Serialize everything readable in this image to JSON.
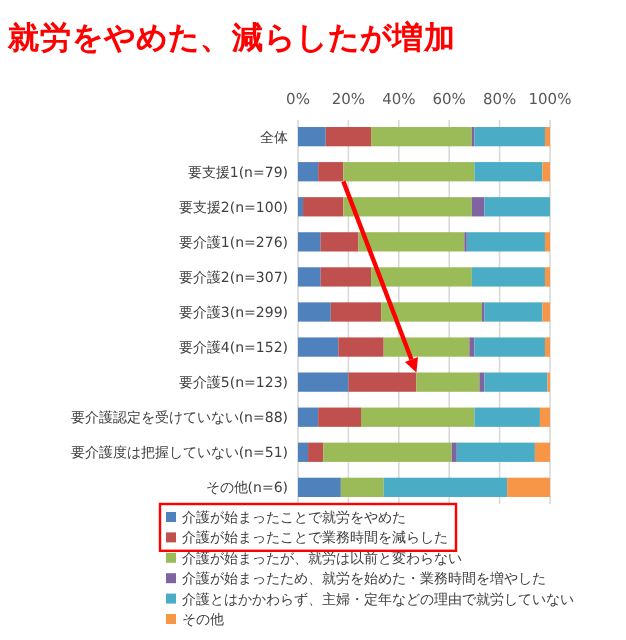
{
  "chart_data": {
    "type": "bar",
    "orientation": "horizontal",
    "stacked": true,
    "title": "就労をやめた、減らしたが増加",
    "categories": [
      "全体",
      "要支援1(n=79)",
      "要支援2(n=100)",
      "要介護1(n=276)",
      "要介護2(n=307)",
      "要介護3(n=299)",
      "要介護4(n=152)",
      "要介護5(n=123)",
      "要介護認定を受けていない(n=88)",
      "要介護度は把握していない(n=51)",
      "その他(n=6)"
    ],
    "series": [
      {
        "name": "介護が始まったことで就労をやめた",
        "color": "#4f81bd",
        "values": [
          11,
          8,
          2,
          9,
          9,
          13,
          16,
          20,
          8,
          4,
          17
        ]
      },
      {
        "name": "介護が始まったことで業務時間を減らした",
        "color": "#c0504d",
        "values": [
          18,
          10,
          16,
          15,
          20,
          20,
          18,
          27,
          17,
          6,
          0
        ]
      },
      {
        "name": "介護が始まったが、就労は以前と変わらない",
        "color": "#9bbb59",
        "values": [
          40,
          52,
          51,
          42,
          40,
          40,
          34,
          25,
          45,
          51,
          17
        ]
      },
      {
        "name": "介護が始まったため、就労を始めた・業務時間を増やした",
        "color": "#8064a2",
        "values": [
          1,
          0,
          5,
          1,
          0,
          1,
          2,
          2,
          0,
          2,
          0
        ]
      },
      {
        "name": "介護とはかかわらず、主婦・定年などの理由で就労していない",
        "color": "#4bacc6",
        "values": [
          28,
          27,
          26,
          31,
          29,
          23,
          28,
          25,
          26,
          31,
          49
        ]
      },
      {
        "name": "その他",
        "color": "#f79646",
        "values": [
          2,
          3,
          0,
          2,
          2,
          3,
          2,
          1,
          4,
          6,
          17
        ]
      }
    ],
    "xlim": [
      0,
      100
    ],
    "xticks": [
      {
        "value": 0,
        "label": "0%"
      },
      {
        "value": 20,
        "label": "20%"
      },
      {
        "value": 40,
        "label": "40%"
      },
      {
        "value": 60,
        "label": "60%"
      },
      {
        "value": 80,
        "label": "80%"
      },
      {
        "value": 100,
        "label": "100%"
      }
    ],
    "grid": "x",
    "legend": "bottom"
  }
}
